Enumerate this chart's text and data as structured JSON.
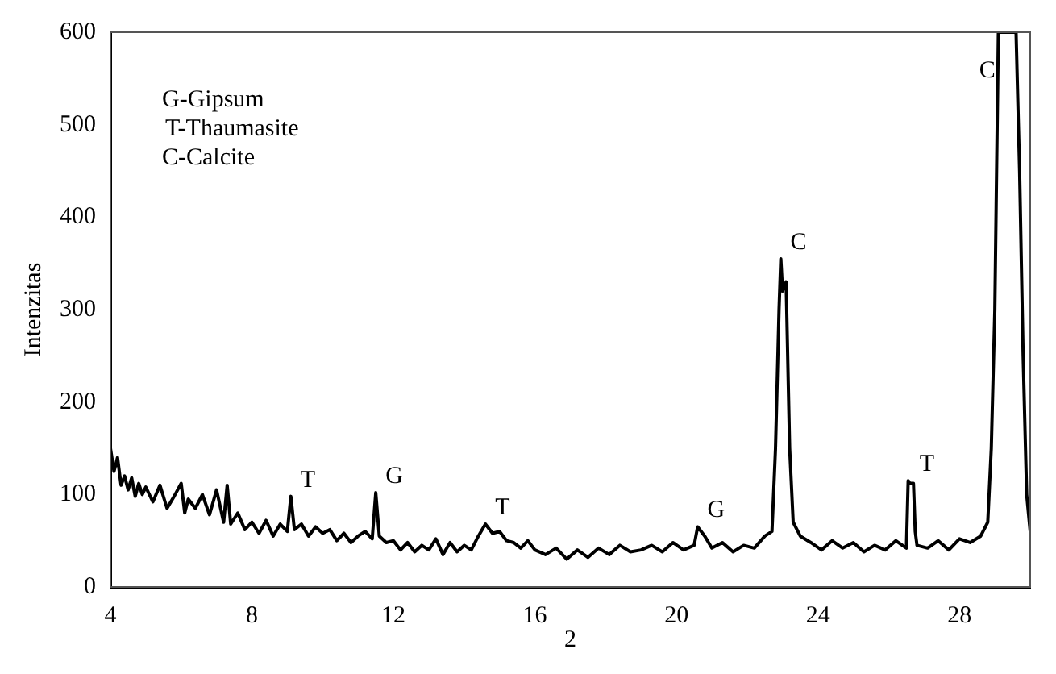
{
  "chart_data": {
    "type": "line",
    "xlabel": "2",
    "ylabel": "Intenzitas",
    "x": [
      4,
      4.1,
      4.2,
      4.3,
      4.4,
      4.5,
      4.6,
      4.7,
      4.8,
      4.9,
      5,
      5.2,
      5.4,
      5.6,
      5.8,
      6,
      6.1,
      6.2,
      6.4,
      6.6,
      6.8,
      7,
      7.2,
      7.3,
      7.4,
      7.6,
      7.8,
      8,
      8.2,
      8.4,
      8.6,
      8.8,
      9,
      9.1,
      9.2,
      9.4,
      9.6,
      9.8,
      10,
      10.2,
      10.4,
      10.6,
      10.8,
      11,
      11.2,
      11.4,
      11.5,
      11.6,
      11.8,
      12,
      12.2,
      12.4,
      12.6,
      12.8,
      13,
      13.2,
      13.4,
      13.6,
      13.8,
      14,
      14.2,
      14.4,
      14.6,
      14.8,
      15,
      15.2,
      15.4,
      15.6,
      15.8,
      16,
      16.3,
      16.6,
      16.9,
      17.2,
      17.5,
      17.8,
      18.1,
      18.4,
      18.7,
      19,
      19.3,
      19.6,
      19.9,
      20.2,
      20.5,
      20.6,
      20.8,
      21,
      21.3,
      21.6,
      21.9,
      22.2,
      22.5,
      22.7,
      22.8,
      22.9,
      22.95,
      23,
      23.1,
      23.2,
      23.3,
      23.5,
      23.8,
      24.1,
      24.4,
      24.7,
      25,
      25.3,
      25.6,
      25.9,
      26.2,
      26.5,
      26.55,
      26.6,
      26.7,
      26.75,
      26.8,
      27.1,
      27.4,
      27.7,
      28,
      28.3,
      28.6,
      28.8,
      28.9,
      29,
      29.1,
      29.2,
      29.3,
      29.5,
      29.6,
      29.7,
      29.8,
      29.9,
      30
    ],
    "series": [
      {
        "color": "#000000",
        "values": [
          150,
          125,
          140,
          110,
          120,
          105,
          118,
          98,
          112,
          100,
          108,
          92,
          110,
          85,
          98,
          112,
          80,
          95,
          85,
          100,
          78,
          105,
          70,
          110,
          68,
          80,
          62,
          70,
          58,
          72,
          55,
          68,
          60,
          98,
          62,
          68,
          55,
          65,
          58,
          62,
          50,
          58,
          48,
          55,
          60,
          52,
          102,
          55,
          48,
          50,
          40,
          48,
          38,
          45,
          40,
          52,
          35,
          48,
          38,
          45,
          40,
          55,
          68,
          58,
          60,
          50,
          48,
          42,
          50,
          40,
          35,
          42,
          30,
          40,
          32,
          42,
          35,
          45,
          38,
          40,
          45,
          38,
          48,
          40,
          45,
          65,
          55,
          42,
          48,
          38,
          45,
          42,
          55,
          60,
          150,
          300,
          355,
          320,
          330,
          150,
          70,
          55,
          48,
          40,
          50,
          42,
          48,
          38,
          45,
          40,
          50,
          42,
          115,
          112,
          112,
          60,
          45,
          42,
          50,
          40,
          52,
          48,
          55,
          70,
          150,
          300,
          600,
          600,
          600,
          600,
          600,
          450,
          250,
          100,
          60
        ]
      }
    ],
    "xlim": [
      4,
      30
    ],
    "ylim": [
      0,
      600
    ],
    "xticks": [
      4,
      8,
      12,
      16,
      20,
      24,
      28
    ],
    "yticks": [
      0,
      100,
      200,
      300,
      400,
      500,
      600
    ],
    "grid": false,
    "legend": false,
    "marker": "none",
    "line_style": "solid",
    "annotations": [
      "G-Gipsum",
      "T-Thaumasite",
      "C-Calcite",
      {
        "text": "T",
        "x": 9.1,
        "y": 98
      },
      {
        "text": "G",
        "x": 11.5,
        "y": 102
      },
      {
        "text": "T",
        "x": 14.6,
        "y": 68
      },
      {
        "text": "G",
        "x": 20.6,
        "y": 65
      },
      {
        "text": "C",
        "x": 22.95,
        "y": 355
      },
      {
        "text": "T",
        "x": 26.6,
        "y": 115
      },
      {
        "text": "C",
        "x": 29.2,
        "y": 600
      }
    ]
  }
}
